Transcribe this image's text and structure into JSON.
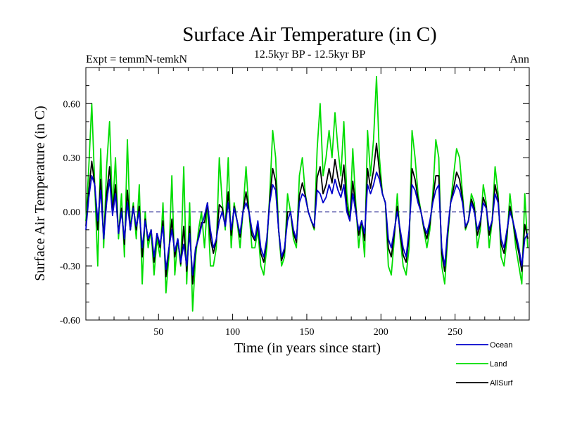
{
  "chart_data": {
    "type": "line",
    "title": "Surface Air Temperature (in C)",
    "subtitle": "12.5kyr BP - 12.5kyr BP",
    "left_annotation": "Expt = temmN-temkN",
    "right_annotation": "Ann",
    "xlabel": "Time (in years since start)",
    "ylabel": "Surface Air Temperature (in C)",
    "xlim": [
      1,
      300
    ],
    "ylim": [
      -0.6,
      0.8
    ],
    "xticks": [
      50,
      100,
      150,
      200,
      250
    ],
    "xtick_labels": [
      "50",
      "100",
      "150",
      "200",
      "250"
    ],
    "yticks": [
      -0.6,
      -0.3,
      0.0,
      0.3,
      0.6
    ],
    "ytick_labels": [
      "-0.60",
      "-0.30",
      "0.00",
      "0.30",
      "0.60"
    ],
    "zero_line": true,
    "legend_position": "bottom-right",
    "colors": {
      "ocean": "#0000cc",
      "land": "#00dd00",
      "allsurf": "#000000",
      "axis": "#000000",
      "zero": "#000080"
    },
    "series": [
      {
        "name": "Ocean",
        "key": "ocean",
        "x_start": 1,
        "x_step": 2,
        "values": [
          -0.1,
          0.08,
          0.2,
          0.15,
          -0.05,
          0.12,
          -0.15,
          0.05,
          0.18,
          -0.02,
          0.1,
          -0.12,
          0.0,
          -0.15,
          0.05,
          -0.1,
          0.02,
          -0.08,
          0.0,
          -0.2,
          -0.05,
          -0.15,
          -0.1,
          -0.25,
          -0.12,
          -0.18,
          -0.08,
          -0.32,
          -0.2,
          -0.1,
          -0.22,
          -0.15,
          -0.28,
          -0.18,
          -0.3,
          -0.12,
          -0.35,
          -0.2,
          -0.15,
          -0.08,
          -0.02,
          0.05,
          -0.1,
          -0.2,
          -0.15,
          -0.05,
          0.0,
          -0.08,
          0.05,
          -0.1,
          0.02,
          -0.05,
          -0.12,
          0.0,
          0.05,
          0.0,
          -0.1,
          -0.15,
          -0.05,
          -0.2,
          -0.25,
          -0.15,
          0.05,
          0.15,
          0.12,
          -0.1,
          -0.25,
          -0.2,
          -0.05,
          0.0,
          -0.1,
          -0.15,
          0.05,
          0.1,
          0.08,
          0.0,
          -0.05,
          -0.08,
          0.12,
          0.1,
          0.05,
          0.08,
          0.15,
          0.1,
          0.18,
          0.12,
          0.08,
          0.15,
          0.0,
          -0.05,
          0.1,
          0.0,
          -0.1,
          -0.05,
          -0.12,
          0.15,
          0.1,
          0.15,
          0.22,
          0.18,
          0.1,
          0.05,
          -0.15,
          -0.2,
          -0.1,
          0.0,
          -0.1,
          -0.2,
          -0.25,
          -0.1,
          0.15,
          0.12,
          0.05,
          0.0,
          -0.08,
          -0.12,
          -0.05,
          0.05,
          0.12,
          0.15,
          -0.2,
          -0.3,
          -0.1,
          0.05,
          0.1,
          0.15,
          0.12,
          0.05,
          -0.08,
          -0.05,
          0.05,
          0.0,
          -0.1,
          -0.05,
          0.05,
          0.02,
          -0.1,
          -0.05,
          0.1,
          0.05,
          -0.15,
          -0.2,
          -0.1,
          0.0,
          -0.05,
          -0.12,
          -0.2,
          -0.3,
          -0.15,
          -0.12
        ]
      },
      {
        "name": "Land",
        "key": "land",
        "x_start": 1,
        "x_step": 2,
        "values": [
          -0.05,
          0.25,
          0.6,
          0.15,
          -0.3,
          0.35,
          -0.2,
          0.25,
          0.5,
          0.0,
          0.3,
          -0.15,
          0.1,
          -0.25,
          0.4,
          -0.1,
          0.05,
          -0.15,
          0.15,
          -0.4,
          0.0,
          -0.2,
          -0.1,
          -0.35,
          -0.15,
          -0.25,
          0.05,
          -0.45,
          -0.25,
          0.2,
          -0.35,
          -0.15,
          -0.3,
          0.25,
          -0.4,
          0.05,
          -0.55,
          -0.25,
          -0.1,
          0.0,
          -0.2,
          0.05,
          -0.3,
          -0.3,
          -0.2,
          0.3,
          0.05,
          -0.1,
          0.3,
          -0.2,
          0.05,
          -0.05,
          -0.2,
          0.0,
          0.25,
          0.0,
          -0.2,
          -0.2,
          -0.1,
          -0.3,
          -0.35,
          -0.2,
          0.1,
          0.45,
          0.3,
          -0.1,
          -0.3,
          -0.25,
          0.1,
          0.0,
          -0.15,
          -0.2,
          0.2,
          0.3,
          0.1,
          0.0,
          -0.05,
          -0.1,
          0.35,
          0.6,
          0.2,
          0.3,
          0.45,
          0.3,
          0.55,
          0.35,
          0.2,
          0.5,
          0.1,
          -0.05,
          0.35,
          0.05,
          -0.2,
          -0.05,
          -0.25,
          0.45,
          0.2,
          0.4,
          0.75,
          0.3,
          0.1,
          0.05,
          -0.3,
          -0.35,
          -0.15,
          0.1,
          -0.15,
          -0.3,
          -0.35,
          -0.2,
          0.45,
          0.3,
          0.1,
          0.0,
          -0.1,
          -0.2,
          -0.1,
          0.1,
          0.4,
          0.3,
          -0.3,
          -0.4,
          -0.15,
          0.05,
          0.2,
          0.35,
          0.3,
          0.1,
          -0.1,
          -0.05,
          0.1,
          0.05,
          -0.2,
          -0.1,
          0.15,
          0.05,
          -0.2,
          -0.05,
          0.25,
          0.1,
          -0.25,
          -0.3,
          -0.15,
          0.1,
          -0.05,
          -0.2,
          -0.3,
          -0.4,
          0.1,
          -0.2
        ]
      },
      {
        "name": "AllSurf",
        "key": "allsurf",
        "x_start": 1,
        "x_step": 2,
        "values": [
          -0.08,
          0.12,
          0.28,
          0.15,
          -0.1,
          0.18,
          -0.15,
          0.1,
          0.25,
          0.0,
          0.15,
          -0.12,
          0.02,
          -0.18,
          0.12,
          -0.1,
          0.03,
          -0.1,
          0.03,
          -0.25,
          -0.04,
          -0.16,
          -0.1,
          -0.28,
          -0.12,
          -0.2,
          -0.05,
          -0.36,
          -0.21,
          -0.04,
          -0.25,
          -0.15,
          -0.29,
          -0.08,
          -0.33,
          -0.08,
          -0.4,
          -0.21,
          -0.14,
          -0.06,
          -0.06,
          0.05,
          -0.15,
          -0.23,
          -0.16,
          0.04,
          0.02,
          -0.08,
          0.11,
          -0.13,
          0.03,
          -0.05,
          -0.14,
          0.0,
          0.11,
          0.0,
          -0.13,
          -0.16,
          -0.07,
          -0.23,
          -0.28,
          -0.16,
          0.07,
          0.24,
          0.17,
          -0.1,
          -0.27,
          -0.22,
          0.0,
          0.0,
          -0.12,
          -0.17,
          0.09,
          0.16,
          0.09,
          0.0,
          -0.05,
          -0.09,
          0.19,
          0.25,
          0.1,
          0.15,
          0.24,
          0.16,
          0.29,
          0.19,
          0.12,
          0.26,
          0.03,
          -0.05,
          0.17,
          0.02,
          -0.13,
          -0.05,
          -0.16,
          0.24,
          0.13,
          0.23,
          0.38,
          0.22,
          0.1,
          0.05,
          -0.2,
          -0.25,
          -0.12,
          0.03,
          -0.12,
          -0.24,
          -0.28,
          -0.13,
          0.24,
          0.18,
          0.07,
          0.0,
          -0.09,
          -0.15,
          -0.07,
          0.07,
          0.2,
          0.2,
          -0.23,
          -0.33,
          -0.12,
          0.05,
          0.13,
          0.22,
          0.18,
          0.07,
          -0.09,
          -0.05,
          0.07,
          0.02,
          -0.13,
          -0.07,
          0.08,
          0.03,
          -0.13,
          -0.05,
          0.15,
          0.07,
          -0.18,
          -0.23,
          -0.12,
          0.03,
          -0.05,
          -0.15,
          -0.23,
          -0.33,
          -0.07,
          -0.15
        ]
      }
    ]
  }
}
